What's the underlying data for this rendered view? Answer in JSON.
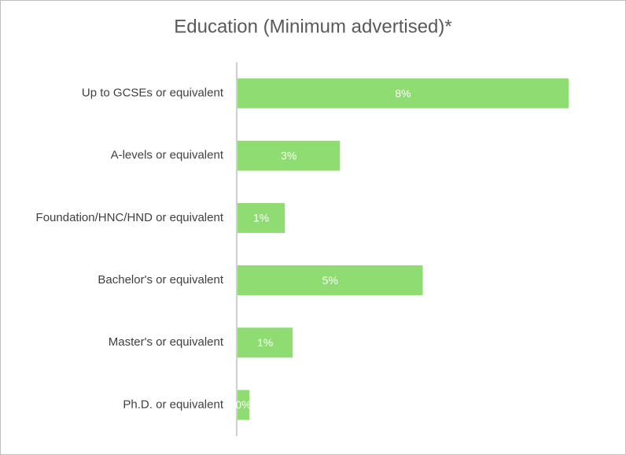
{
  "chart_data": {
    "type": "barh",
    "title": "Education (Minimum advertised)*",
    "categories": [
      "Up to GCSEs or equivalent",
      "A-levels or equivalent",
      "Foundation/HNC/HND or equivalent",
      "Bachelor's or equivalent",
      "Master's or equivalent",
      "Ph.D. or equivalent"
    ],
    "values": [
      8.4,
      2.6,
      1.2,
      4.7,
      1.4,
      0.3
    ],
    "value_labels": [
      "8%",
      "3%",
      "1%",
      "5%",
      "1%",
      "0%"
    ],
    "color": "#8fdc72"
  }
}
